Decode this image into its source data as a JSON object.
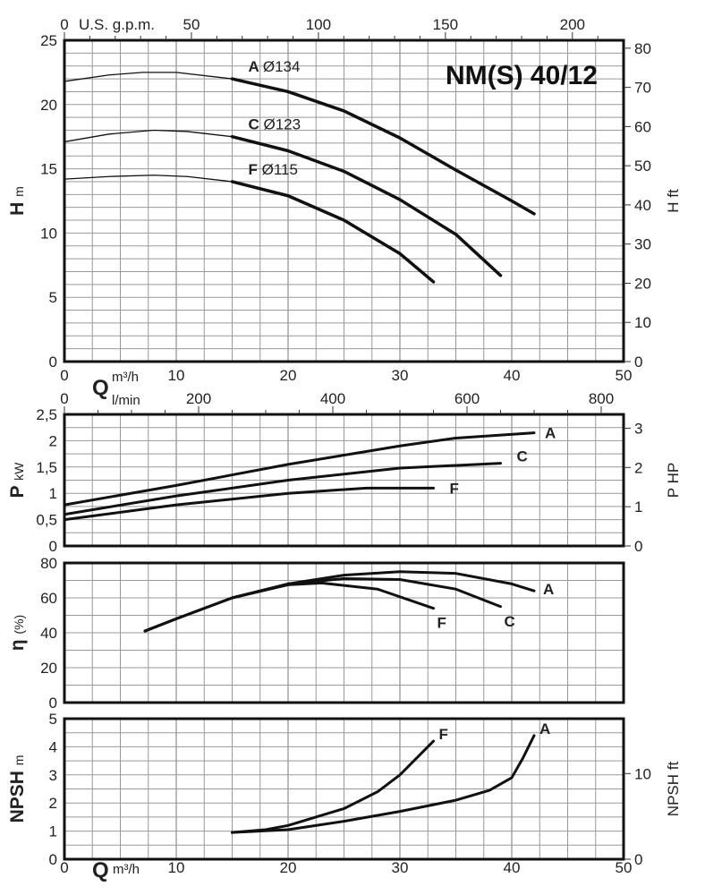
{
  "chart_data": [
    {
      "type": "line",
      "id": "head",
      "title": "NM(S) 40/12",
      "ylabel": "H",
      "yunit": "m",
      "ylabel_right": "H ft",
      "xlim": [
        0,
        50
      ],
      "ylim": [
        0,
        25
      ],
      "yticks": [
        0,
        5,
        10,
        15,
        20,
        25
      ],
      "yticks_right": [
        0,
        10,
        20,
        30,
        40,
        50,
        60,
        70,
        80
      ],
      "grid": true,
      "top_axis": {
        "label": "U.S. g.p.m.",
        "ticks": [
          0,
          50,
          100,
          150,
          200
        ]
      },
      "xticks": [
        0,
        10,
        20,
        30,
        40,
        50
      ],
      "series": [
        {
          "name": "A",
          "label": "Ø134",
          "x": [
            0,
            4,
            7,
            10,
            15,
            20,
            25,
            30,
            35,
            40,
            42
          ],
          "y": [
            21.8,
            22.3,
            22.5,
            22.5,
            22.0,
            21.0,
            19.5,
            17.4,
            14.9,
            12.5,
            11.5
          ]
        },
        {
          "name": "C",
          "label": "Ø123",
          "x": [
            0,
            4,
            8,
            11,
            15,
            20,
            25,
            30,
            35,
            39
          ],
          "y": [
            17.1,
            17.7,
            18.0,
            17.9,
            17.5,
            16.4,
            14.8,
            12.6,
            9.9,
            6.7
          ]
        },
        {
          "name": "F",
          "label": "Ø115",
          "x": [
            0,
            4,
            8,
            11,
            15,
            20,
            25,
            30,
            33
          ],
          "y": [
            14.2,
            14.4,
            14.5,
            14.4,
            14.0,
            12.9,
            11.0,
            8.4,
            6.2
          ]
        }
      ],
      "thin_until_x": 15
    },
    {
      "type": "line",
      "id": "power",
      "ylabel": "P",
      "yunit": "kW",
      "ylabel_right": "P HP",
      "xlim": [
        0,
        50
      ],
      "ylim": [
        0,
        2.5
      ],
      "yticks": [
        "0",
        "0,5",
        "1",
        "1,5",
        "2",
        "2,5"
      ],
      "yticks_right": [
        0,
        1,
        2,
        3
      ],
      "grid": true,
      "xlabel": "Q",
      "xunit": "m³/h",
      "xunit2": "l/min",
      "top_axis": {
        "ticks": [
          0,
          200,
          400,
          600,
          800
        ]
      },
      "series": [
        {
          "name": "A",
          "x": [
            0,
            10,
            20,
            30,
            35,
            42
          ],
          "y": [
            0.78,
            1.15,
            1.55,
            1.9,
            2.05,
            2.15
          ]
        },
        {
          "name": "C",
          "x": [
            0,
            10,
            20,
            30,
            39
          ],
          "y": [
            0.6,
            0.95,
            1.25,
            1.48,
            1.57
          ]
        },
        {
          "name": "F",
          "x": [
            0,
            10,
            20,
            27,
            33
          ],
          "y": [
            0.5,
            0.78,
            1.0,
            1.1,
            1.1
          ]
        }
      ]
    },
    {
      "type": "line",
      "id": "efficiency",
      "ylabel": "η",
      "yunit": "(%)",
      "xlim": [
        0,
        50
      ],
      "ylim": [
        0,
        80
      ],
      "yticks": [
        0,
        20,
        40,
        60,
        80
      ],
      "grid": true,
      "series": [
        {
          "name": "A",
          "x": [
            7.2,
            10,
            15,
            20,
            25,
            30,
            35,
            40,
            42
          ],
          "y": [
            41,
            48,
            60,
            68,
            73,
            75,
            74,
            68,
            64
          ]
        },
        {
          "name": "C",
          "x": [
            7.2,
            10,
            15,
            20,
            25,
            30,
            35,
            39
          ],
          "y": [
            41,
            48,
            60,
            68,
            71,
            70.5,
            65,
            55
          ]
        },
        {
          "name": "F",
          "x": [
            7.2,
            10,
            15,
            20,
            23,
            28,
            33
          ],
          "y": [
            41,
            48,
            60,
            67.5,
            68.5,
            65,
            54
          ]
        }
      ]
    },
    {
      "type": "line",
      "id": "npsh",
      "ylabel": "NPSH",
      "yunit": "m",
      "ylabel_right": "NPSH ft",
      "xlim": [
        0,
        50
      ],
      "ylim": [
        0,
        5
      ],
      "yticks": [
        0,
        1,
        2,
        3,
        4,
        5
      ],
      "yticks_right": [
        0,
        10
      ],
      "grid": true,
      "xlabel": "Q",
      "xunit": "m³/h",
      "xticks": [
        0,
        10,
        20,
        30,
        40,
        50
      ],
      "series": [
        {
          "name": "A",
          "x": [
            15,
            20,
            25,
            30,
            35,
            38,
            40,
            41,
            42
          ],
          "y": [
            0.95,
            1.05,
            1.35,
            1.7,
            2.1,
            2.45,
            2.9,
            3.6,
            4.4
          ]
        },
        {
          "name": "F",
          "x": [
            15,
            18,
            20,
            25,
            28,
            30,
            33
          ],
          "y": [
            0.95,
            1.05,
            1.2,
            1.8,
            2.4,
            3.0,
            4.2
          ]
        }
      ]
    }
  ]
}
